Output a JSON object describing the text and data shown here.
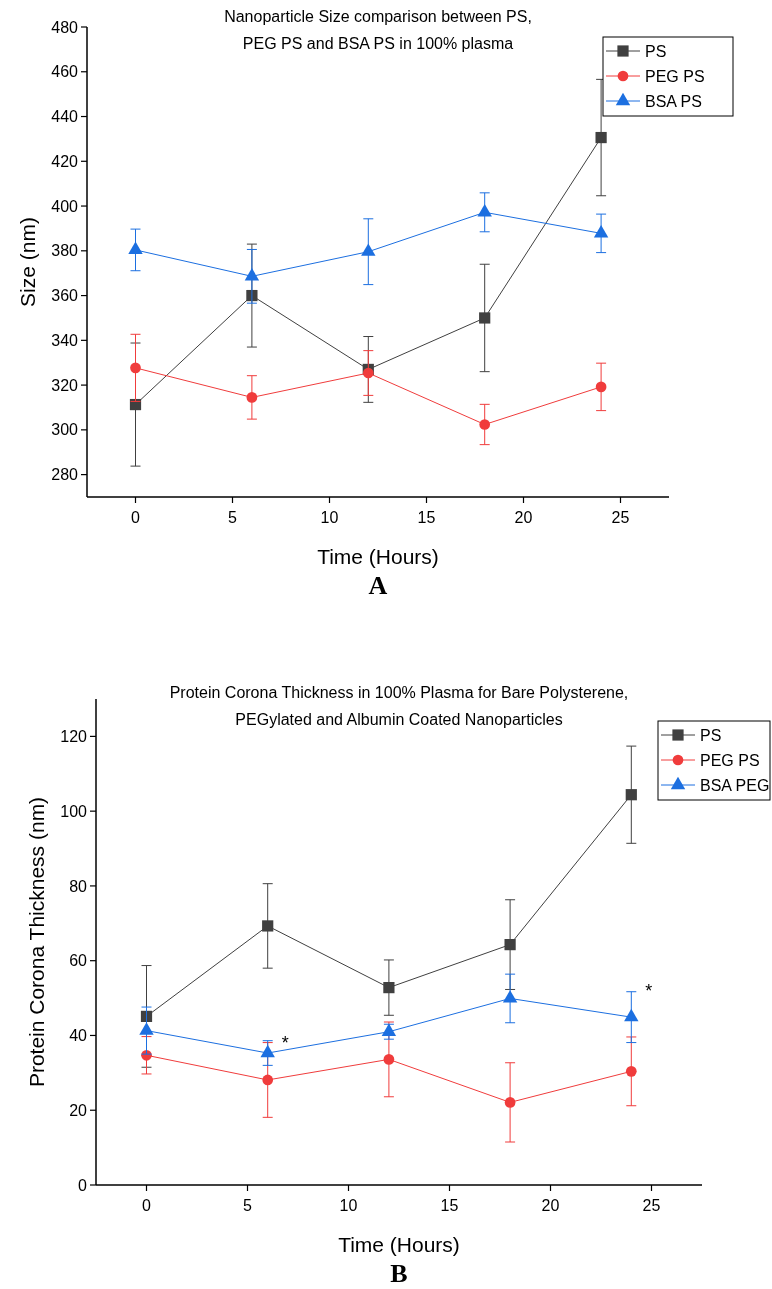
{
  "chart_data": [
    {
      "type": "line",
      "title": "Nanoparticle Size comparison between PS,\nPEG PS and BSA PS in 100% plasma",
      "xlabel": "Time (Hours)",
      "ylabel": "Size (nm)",
      "x": [
        0,
        6,
        12,
        18,
        24
      ],
      "xlim": [
        -2.5,
        27.5
      ],
      "xticks": [
        0,
        5,
        10,
        15,
        20,
        25
      ],
      "ylim": [
        270,
        480
      ],
      "yticks": [
        280,
        300,
        320,
        340,
        360,
        380,
        400,
        420,
        440,
        460,
        480
      ],
      "legend": "top right",
      "grid": false,
      "series": [
        {
          "name": "PS",
          "color": "#404040",
          "marker": "square",
          "values": [
            311.3,
            360,
            327,
            350,
            430.6
          ],
          "errors": [
            27.5,
            23,
            14.7,
            24,
            26
          ]
        },
        {
          "name": "PEG PS",
          "color": "#f03c3c",
          "marker": "circle",
          "values": [
            327.7,
            314.5,
            325.4,
            302.4,
            319.2
          ],
          "errors": [
            15,
            9.7,
            10,
            9,
            10.6
          ]
        },
        {
          "name": "BSA PS",
          "color": "#1c6fe0",
          "marker": "triangle",
          "values": [
            380.4,
            368.6,
            379.6,
            397.2,
            387.8
          ],
          "errors": [
            9.3,
            12,
            14.7,
            8.7,
            8.6
          ]
        }
      ],
      "annotations": [
        "A"
      ]
    },
    {
      "type": "line",
      "title": "Protein Corona Thickness in 100% Plasma for Bare Polysterene,\nPEGylated and Albumin Coated Nanoparticles",
      "xlabel": "Time (Hours)",
      "ylabel": "Protein Corona Thickness (nm)",
      "x": [
        0,
        6,
        12,
        18,
        24
      ],
      "xlim": [
        -2.5,
        27.5
      ],
      "xticks": [
        0,
        5,
        10,
        15,
        20,
        25
      ],
      "ylim": [
        0,
        130
      ],
      "yticks": [
        0,
        20,
        40,
        60,
        80,
        100,
        120
      ],
      "legend": "top right",
      "grid": false,
      "series": [
        {
          "name": "PS",
          "color": "#404040",
          "marker": "square",
          "values": [
            45.1,
            69.3,
            52.8,
            64.3,
            104.4
          ],
          "errors": [
            13.6,
            11.3,
            7.4,
            12,
            13
          ]
        },
        {
          "name": "PEG PS",
          "color": "#f03c3c",
          "marker": "circle",
          "values": [
            34.7,
            28.1,
            33.6,
            22.1,
            30.4
          ],
          "errors": [
            5,
            10,
            10,
            10.6,
            9.2
          ]
        },
        {
          "name": "BSA PEG",
          "color": "#1c6fe0",
          "marker": "triangle",
          "values": [
            41.3,
            35.3,
            41,
            49.9,
            44.9
          ],
          "errors": [
            6.3,
            3.3,
            2,
            6.5,
            6.8
          ]
        }
      ],
      "annotations": [
        {
          "text": "*",
          "x": 6,
          "y": 38
        },
        {
          "text": "*",
          "x": 24,
          "y": 52
        },
        "B"
      ]
    }
  ]
}
